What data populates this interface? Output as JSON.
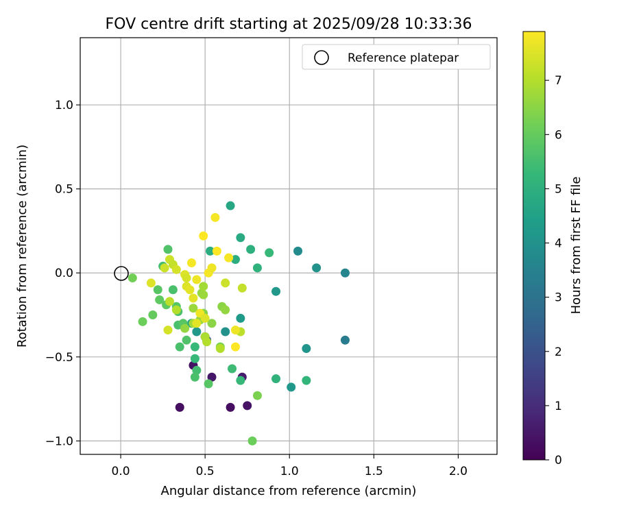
{
  "chart_data": {
    "type": "scatter",
    "title": "FOV centre drift starting at 2025/09/28 10:33:36",
    "xlabel": "Angular distance from reference (arcmin)",
    "ylabel": "Rotation from reference (arcmin)",
    "xlim": [
      -0.24,
      2.23
    ],
    "ylim": [
      -1.08,
      1.4
    ],
    "xticks": [
      0.0,
      0.5,
      1.0,
      1.5,
      2.0
    ],
    "xtick_labels": [
      "0.0",
      "0.5",
      "1.0",
      "1.5",
      "2.0"
    ],
    "yticks": [
      -1.0,
      -0.5,
      0.0,
      0.5,
      1.0
    ],
    "ytick_labels": [
      "−1.0",
      "−0.5",
      "0.0",
      "0.5",
      "1.0"
    ],
    "grid": true,
    "legend": {
      "position": "top-right",
      "entries": [
        "Reference platepar"
      ]
    },
    "reference_point": {
      "x": 0.0,
      "y": 0.0,
      "label": "Reference platepar"
    },
    "colorbar": {
      "label": "Hours from first FF file",
      "range": [
        0,
        7.9
      ],
      "ticks": [
        0,
        1,
        2,
        3,
        4,
        5,
        6,
        7
      ],
      "tick_labels": [
        "0",
        "1",
        "2",
        "3",
        "4",
        "5",
        "6",
        "7"
      ],
      "colormap": [
        "#440154",
        "#482878",
        "#3e4989",
        "#31688e",
        "#26828e",
        "#1f9e89",
        "#35b779",
        "#6ece58",
        "#b5de2b",
        "#fde725"
      ]
    },
    "points": [
      {
        "x": 0.35,
        "y": -0.8,
        "t": 0.3
      },
      {
        "x": 0.43,
        "y": -0.55,
        "t": 0.4
      },
      {
        "x": 0.54,
        "y": -0.62,
        "t": 0.5
      },
      {
        "x": 0.65,
        "y": -0.8,
        "t": 0.3
      },
      {
        "x": 0.72,
        "y": -0.62,
        "t": 0.6
      },
      {
        "x": 0.75,
        "y": -0.79,
        "t": 0.4
      },
      {
        "x": 0.5,
        "y": -0.38,
        "t": 1.2
      },
      {
        "x": 0.51,
        "y": -0.4,
        "t": 2.2
      },
      {
        "x": 1.33,
        "y": -0.4,
        "t": 3.3
      },
      {
        "x": 1.33,
        "y": 0.0,
        "t": 3.6
      },
      {
        "x": 1.05,
        "y": 0.13,
        "t": 3.8
      },
      {
        "x": 1.16,
        "y": 0.03,
        "t": 4.0
      },
      {
        "x": 1.1,
        "y": -0.45,
        "t": 4.1
      },
      {
        "x": 0.92,
        "y": -0.11,
        "t": 4.2
      },
      {
        "x": 1.01,
        "y": -0.68,
        "t": 4.2
      },
      {
        "x": 0.62,
        "y": -0.35,
        "t": 4.0
      },
      {
        "x": 0.71,
        "y": -0.27,
        "t": 4.3
      },
      {
        "x": 0.45,
        "y": -0.35,
        "t": 4.2
      },
      {
        "x": 0.42,
        "y": -0.3,
        "t": 4.5
      },
      {
        "x": 0.65,
        "y": 0.4,
        "t": 4.7
      },
      {
        "x": 0.71,
        "y": 0.21,
        "t": 4.8
      },
      {
        "x": 0.77,
        "y": 0.14,
        "t": 5.0
      },
      {
        "x": 0.68,
        "y": 0.08,
        "t": 4.9
      },
      {
        "x": 0.53,
        "y": 0.13,
        "t": 4.9
      },
      {
        "x": 0.81,
        "y": 0.03,
        "t": 5.1
      },
      {
        "x": 0.88,
        "y": 0.12,
        "t": 5.3
      },
      {
        "x": 0.92,
        "y": -0.63,
        "t": 5.1
      },
      {
        "x": 1.1,
        "y": -0.64,
        "t": 5.2
      },
      {
        "x": 0.71,
        "y": -0.64,
        "t": 5.3
      },
      {
        "x": 0.66,
        "y": -0.57,
        "t": 5.4
      },
      {
        "x": 0.44,
        "y": -0.44,
        "t": 5.3
      },
      {
        "x": 0.44,
        "y": -0.51,
        "t": 5.3
      },
      {
        "x": 0.45,
        "y": -0.58,
        "t": 5.5
      },
      {
        "x": 0.44,
        "y": -0.62,
        "t": 5.6
      },
      {
        "x": 0.52,
        "y": -0.66,
        "t": 5.8
      },
      {
        "x": 0.35,
        "y": -0.44,
        "t": 5.6
      },
      {
        "x": 0.39,
        "y": -0.4,
        "t": 5.7
      },
      {
        "x": 0.34,
        "y": -0.31,
        "t": 5.6
      },
      {
        "x": 0.37,
        "y": -0.3,
        "t": 5.8
      },
      {
        "x": 0.25,
        "y": 0.04,
        "t": 5.5
      },
      {
        "x": 0.28,
        "y": 0.14,
        "t": 5.7
      },
      {
        "x": 0.31,
        "y": -0.1,
        "t": 5.6
      },
      {
        "x": 0.33,
        "y": -0.2,
        "t": 5.8
      },
      {
        "x": 0.34,
        "y": -0.23,
        "t": 5.6
      },
      {
        "x": 0.27,
        "y": -0.19,
        "t": 5.9
      },
      {
        "x": 0.22,
        "y": -0.1,
        "t": 5.8
      },
      {
        "x": 0.23,
        "y": -0.16,
        "t": 5.9
      },
      {
        "x": 0.19,
        "y": -0.25,
        "t": 6.0
      },
      {
        "x": 0.13,
        "y": -0.29,
        "t": 6.1
      },
      {
        "x": 0.07,
        "y": -0.03,
        "t": 6.2
      },
      {
        "x": 0.78,
        "y": -1.0,
        "t": 6.1
      },
      {
        "x": 0.81,
        "y": -0.73,
        "t": 6.3
      },
      {
        "x": 0.59,
        "y": -0.44,
        "t": 6.3
      },
      {
        "x": 0.6,
        "y": -0.2,
        "t": 6.5
      },
      {
        "x": 0.62,
        "y": -0.22,
        "t": 6.6
      },
      {
        "x": 0.49,
        "y": -0.24,
        "t": 6.4
      },
      {
        "x": 0.47,
        "y": -0.28,
        "t": 6.6
      },
      {
        "x": 0.54,
        "y": -0.3,
        "t": 6.5
      },
      {
        "x": 0.48,
        "y": -0.12,
        "t": 6.6
      },
      {
        "x": 0.49,
        "y": -0.13,
        "t": 6.7
      },
      {
        "x": 0.49,
        "y": -0.08,
        "t": 6.8
      },
      {
        "x": 0.43,
        "y": -0.21,
        "t": 6.7
      },
      {
        "x": 0.38,
        "y": -0.33,
        "t": 6.6
      },
      {
        "x": 0.43,
        "y": -0.3,
        "t": 6.8
      },
      {
        "x": 0.5,
        "y": -0.38,
        "t": 6.9
      },
      {
        "x": 0.51,
        "y": -0.41,
        "t": 7.0
      },
      {
        "x": 0.59,
        "y": -0.45,
        "t": 7.0
      },
      {
        "x": 0.71,
        "y": -0.35,
        "t": 7.1
      },
      {
        "x": 0.72,
        "y": -0.09,
        "t": 7.2
      },
      {
        "x": 0.62,
        "y": -0.06,
        "t": 7.3
      },
      {
        "x": 0.29,
        "y": -0.17,
        "t": 7.1
      },
      {
        "x": 0.33,
        "y": -0.22,
        "t": 7.0
      },
      {
        "x": 0.28,
        "y": -0.34,
        "t": 7.4
      },
      {
        "x": 0.29,
        "y": 0.08,
        "t": 7.3
      },
      {
        "x": 0.31,
        "y": 0.05,
        "t": 7.2
      },
      {
        "x": 0.33,
        "y": 0.02,
        "t": 7.4
      },
      {
        "x": 0.26,
        "y": 0.03,
        "t": 7.3
      },
      {
        "x": 0.38,
        "y": -0.01,
        "t": 7.5
      },
      {
        "x": 0.39,
        "y": -0.03,
        "t": 7.4
      },
      {
        "x": 0.39,
        "y": -0.08,
        "t": 7.5
      },
      {
        "x": 0.41,
        "y": -0.1,
        "t": 7.6
      },
      {
        "x": 0.43,
        "y": -0.15,
        "t": 7.6
      },
      {
        "x": 0.18,
        "y": -0.06,
        "t": 7.5
      },
      {
        "x": 0.45,
        "y": -0.04,
        "t": 7.7
      },
      {
        "x": 0.52,
        "y": 0.0,
        "t": 7.8
      },
      {
        "x": 0.54,
        "y": 0.03,
        "t": 7.7
      },
      {
        "x": 0.42,
        "y": 0.06,
        "t": 7.8
      },
      {
        "x": 0.57,
        "y": 0.13,
        "t": 7.9
      },
      {
        "x": 0.64,
        "y": 0.09,
        "t": 7.8
      },
      {
        "x": 0.49,
        "y": 0.22,
        "t": 7.9
      },
      {
        "x": 0.56,
        "y": 0.33,
        "t": 7.8
      },
      {
        "x": 0.68,
        "y": -0.34,
        "t": 7.7
      },
      {
        "x": 0.68,
        "y": -0.44,
        "t": 7.9
      },
      {
        "x": 0.45,
        "y": -0.3,
        "t": 7.6
      },
      {
        "x": 0.47,
        "y": -0.24,
        "t": 7.7
      },
      {
        "x": 0.5,
        "y": -0.27,
        "t": 7.5
      }
    ]
  }
}
